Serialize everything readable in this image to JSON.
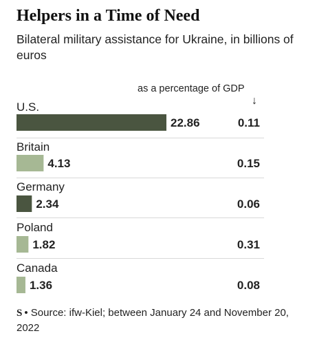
{
  "title": "Helpers in a Time of Need",
  "subtitle": "Bilateral military assistance for Ukraine, in billions of euros",
  "gdp_header": "as a percentage of GDP",
  "gdp_arrow": "↓",
  "source_logo": "S",
  "source": "• Source: ifw-Kiel; between January 24 and November 20, 2022",
  "colors": {
    "dark": "#4a5540",
    "light": "#a6b894"
  },
  "chart_data": {
    "type": "bar",
    "title": "Helpers in a Time of Need",
    "subtitle": "Bilateral military assistance for Ukraine, in billions of euros",
    "categories": [
      "U.S.",
      "Britain",
      "Germany",
      "Poland",
      "Canada"
    ],
    "series": [
      {
        "values": [
          22.86,
          4.13,
          2.34,
          1.82,
          1.36
        ]
      },
      {
        "name": "as a percentage of GDP",
        "values": [
          0.11,
          0.15,
          0.06,
          0.31,
          0.08
        ]
      }
    ],
    "bar_labels": [
      "22.86",
      "4.13",
      "2.34",
      "1.82",
      "1.36"
    ],
    "gdp_labels": [
      "0.11",
      "0.15",
      "0.06",
      "0.31",
      "0.08"
    ],
    "bar_shades": [
      "dark",
      "light",
      "dark",
      "light",
      "light"
    ],
    "xlim": [
      0,
      22.86
    ]
  }
}
